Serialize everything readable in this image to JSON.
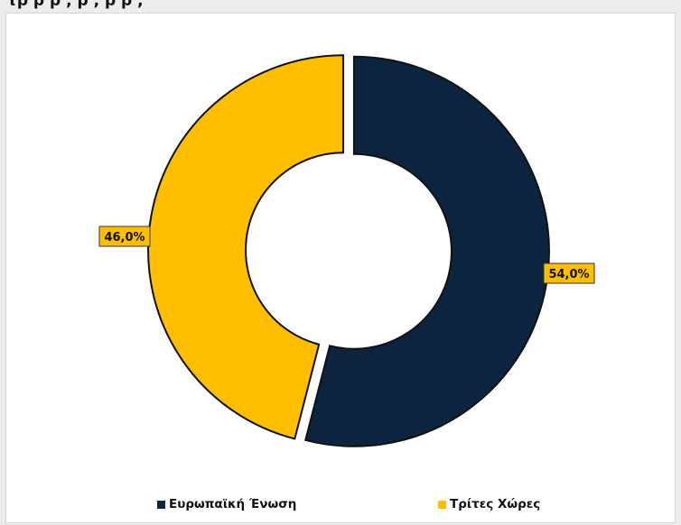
{
  "header": {
    "title_fragment": "τρ ρ ρ  ,  ρ  ,  ρ ρ  ,"
  },
  "chart_data": {
    "type": "donut",
    "title": "",
    "categories": [
      "Ευρωπαϊκή Ένωση",
      "Τρίτες Χώρες"
    ],
    "values": [
      54.0,
      46.0
    ],
    "labels": [
      "54,0%",
      "46,0%"
    ],
    "colors": [
      "#0d2440",
      "#ffbf00"
    ],
    "legend_position": "bottom",
    "exploded": true
  },
  "legend": {
    "items": [
      {
        "label": "Ευρωπαϊκή Ένωση",
        "color": "#0d2440"
      },
      {
        "label": "Τρίτες Χώρες",
        "color": "#ffbf00"
      }
    ]
  }
}
